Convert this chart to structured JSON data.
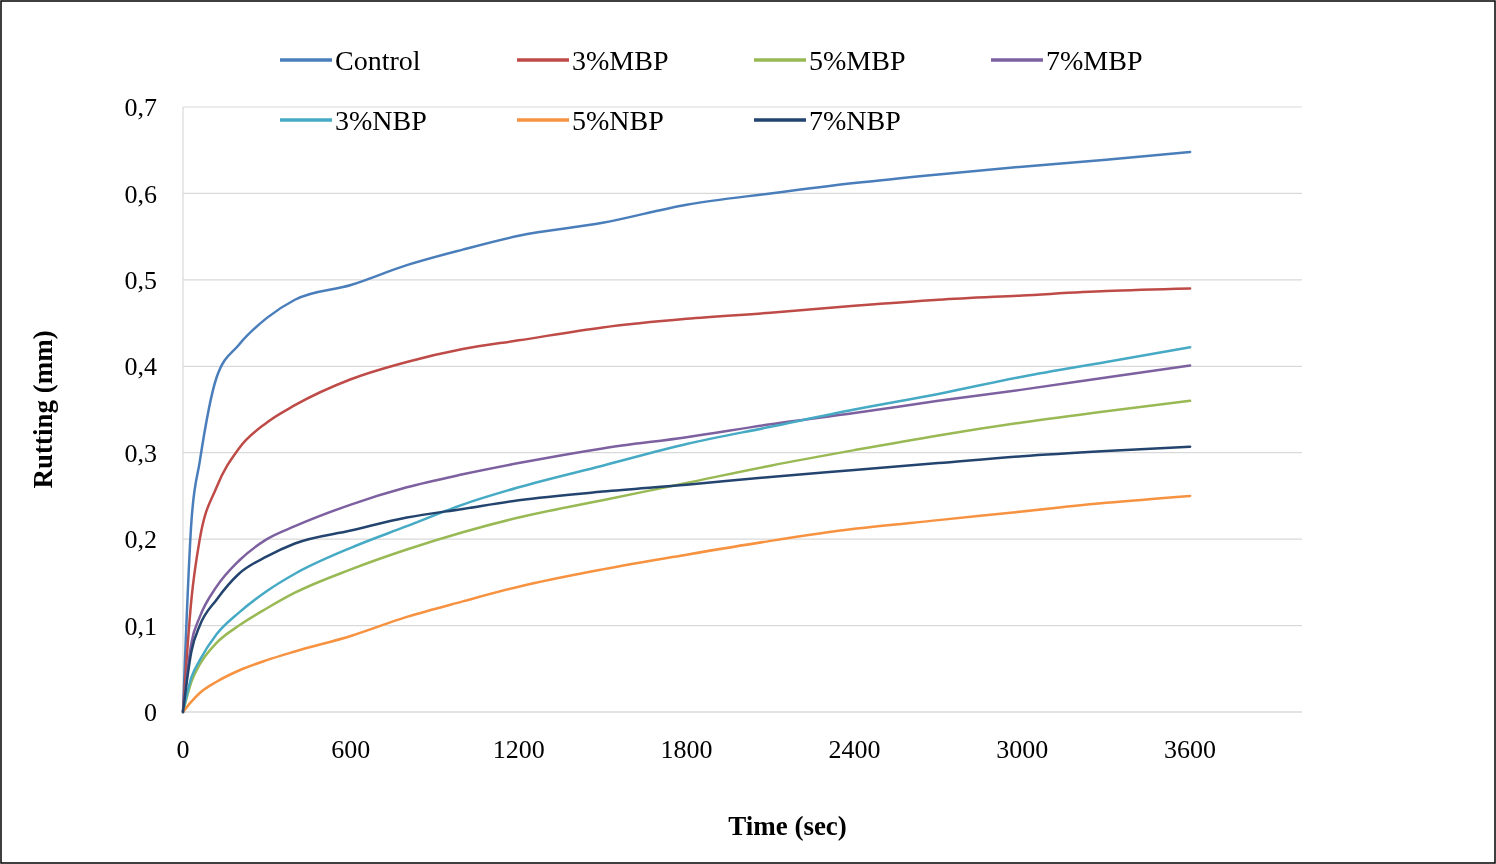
{
  "chart_data": {
    "type": "line",
    "xlabel": "Time (sec)",
    "ylabel": "Rutting (mm)",
    "xlim": [
      0,
      4000
    ],
    "xticks": [
      0,
      600,
      1200,
      1800,
      2400,
      3000,
      3600
    ],
    "ylim": [
      0,
      0.7
    ],
    "yticks": [
      0,
      {
        "value": 0.1,
        "label": "0,1"
      },
      {
        "value": 0.2,
        "label": "0,2"
      },
      {
        "value": 0.3,
        "label": "0,3"
      },
      {
        "value": 0.4,
        "label": "0,4"
      },
      {
        "value": 0.5,
        "label": "0,5"
      },
      {
        "value": 0.6,
        "label": "0,6"
      },
      {
        "value": 0.7,
        "label": "0,7"
      }
    ],
    "grid": "y",
    "legend": "top",
    "marker": "none",
    "line_style": "solid",
    "x": [
      0,
      30,
      60,
      120,
      200,
      300,
      400,
      600,
      800,
      1000,
      1200,
      1500,
      1800,
      2100,
      2400,
      2700,
      3000,
      3300,
      3600
    ],
    "series": [
      {
        "name": "Control",
        "color": "#4a7ebb",
        "values": [
          0,
          0.22,
          0.29,
          0.387,
          0.425,
          0.456,
          0.477,
          0.494,
          0.517,
          0.535,
          0.551,
          0.566,
          0.587,
          0.6,
          0.612,
          0.622,
          0.631,
          0.639,
          0.648
        ]
      },
      {
        "name": "3%MBP",
        "color": "#be4b48",
        "values": [
          0,
          0.13,
          0.2,
          0.26,
          0.305,
          0.335,
          0.355,
          0.385,
          0.405,
          0.42,
          0.43,
          0.445,
          0.455,
          0.462,
          0.47,
          0.477,
          0.482,
          0.487,
          0.49
        ]
      },
      {
        "name": "5%MBP",
        "color": "#98b954",
        "values": [
          0,
          0.035,
          0.055,
          0.08,
          0.1,
          0.12,
          0.138,
          0.165,
          0.188,
          0.208,
          0.225,
          0.245,
          0.265,
          0.285,
          0.303,
          0.32,
          0.335,
          0.348,
          0.36
        ]
      },
      {
        "name": "7%MBP",
        "color": "#7d60a0",
        "values": [
          0,
          0.08,
          0.11,
          0.145,
          0.175,
          0.2,
          0.215,
          0.24,
          0.26,
          0.275,
          0.288,
          0.305,
          0.318,
          0.333,
          0.346,
          0.36,
          0.373,
          0.387,
          0.401
        ]
      },
      {
        "name": "3%NBP",
        "color": "#46aac5",
        "values": [
          0,
          0.04,
          0.06,
          0.09,
          0.115,
          0.14,
          0.16,
          0.19,
          0.215,
          0.24,
          0.26,
          0.285,
          0.31,
          0.33,
          0.35,
          0.368,
          0.388,
          0.405,
          0.422
        ]
      },
      {
        "name": "5%NBP",
        "color": "#f69240",
        "values": [
          0,
          0.012,
          0.022,
          0.035,
          0.048,
          0.06,
          0.07,
          0.088,
          0.11,
          0.128,
          0.145,
          0.165,
          0.182,
          0.198,
          0.212,
          0.222,
          0.232,
          0.242,
          0.25
        ]
      },
      {
        "name": "7%NBP",
        "color": "#23446f",
        "values": [
          0,
          0.07,
          0.1,
          0.13,
          0.16,
          0.18,
          0.195,
          0.21,
          0.225,
          0.235,
          0.245,
          0.255,
          0.263,
          0.272,
          0.28,
          0.288,
          0.296,
          0.302,
          0.307
        ]
      }
    ]
  }
}
